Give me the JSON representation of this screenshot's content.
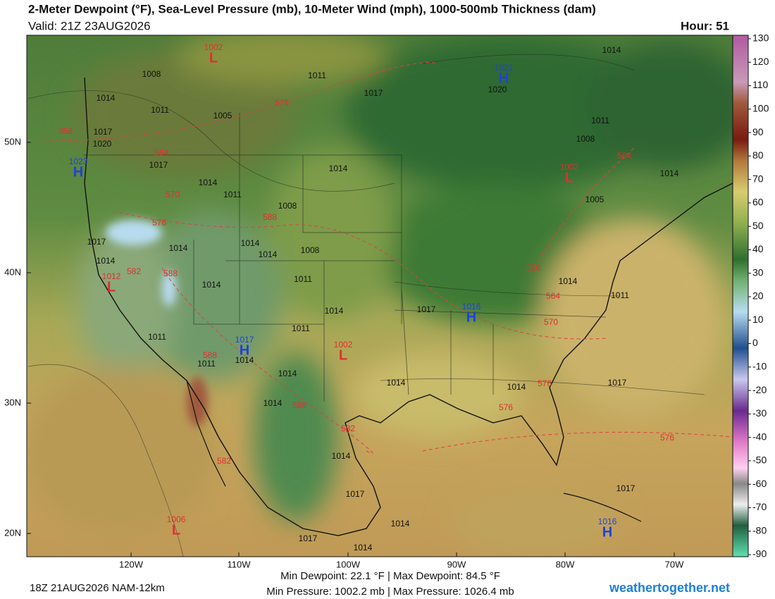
{
  "header": {
    "title": "2-Meter Dewpoint (°F), Sea-Level Pressure (mb), 10-Meter Wind (mph), 1000-500mb Thickness (dam)",
    "valid": "Valid: 21Z 23AUG2026",
    "hour": "Hour: 51"
  },
  "map": {
    "lat_labels": [
      "50N",
      "40N",
      "30N",
      "20N"
    ],
    "lon_labels": [
      "120W",
      "110W",
      "100W",
      "90W",
      "80W",
      "70W"
    ],
    "pressure_centers": [
      {
        "letter": "L",
        "value": 1002
      },
      {
        "letter": "H",
        "value": 1021
      },
      {
        "letter": "H",
        "value": 1023
      },
      {
        "letter": "L",
        "value": 1012
      },
      {
        "letter": "L",
        "value": 1002
      },
      {
        "letter": "H",
        "value": 1016
      },
      {
        "letter": "H",
        "value": 1017
      },
      {
        "letter": "L",
        "value": 1002
      },
      {
        "letter": "L",
        "value": 1006
      },
      {
        "letter": "H",
        "value": 1016
      }
    ],
    "isobar_labels": [
      1014,
      1008,
      1011,
      1017,
      1020,
      1014,
      1011,
      1005,
      1011,
      1017,
      1020,
      1008,
      1017,
      1014,
      1014,
      1011,
      1008,
      1005,
      1014,
      1017,
      1014,
      1014,
      1014,
      1008,
      1014,
      1014,
      1011,
      1014,
      1011,
      1014,
      1017,
      1011,
      1011,
      1011,
      1014,
      1014,
      1014,
      1014,
      1017,
      1014,
      1014,
      1017,
      1017,
      1014,
      1017,
      1014
    ],
    "thickness_labels": [
      576,
      558,
      564,
      570,
      576,
      582,
      588,
      588,
      588,
      588,
      582,
      582,
      564,
      558,
      564,
      570,
      576,
      576,
      576
    ]
  },
  "colorbar": {
    "ticks": [
      130,
      120,
      110,
      100,
      90,
      80,
      70,
      60,
      50,
      40,
      30,
      20,
      10,
      0,
      -10,
      -20,
      -30,
      -40,
      -50,
      -60,
      -70,
      -80,
      -90
    ]
  },
  "footer": {
    "run": "18Z 21AUG2026 NAM-12km",
    "dewpoint": "Min Dewpoint:  22.1 °F | Max Dewpoint:  84.5 °F",
    "pressure": "Min Pressure: 1002.2 mb | Max Pressure: 1026.4 mb",
    "site": "weathertogether.net"
  }
}
